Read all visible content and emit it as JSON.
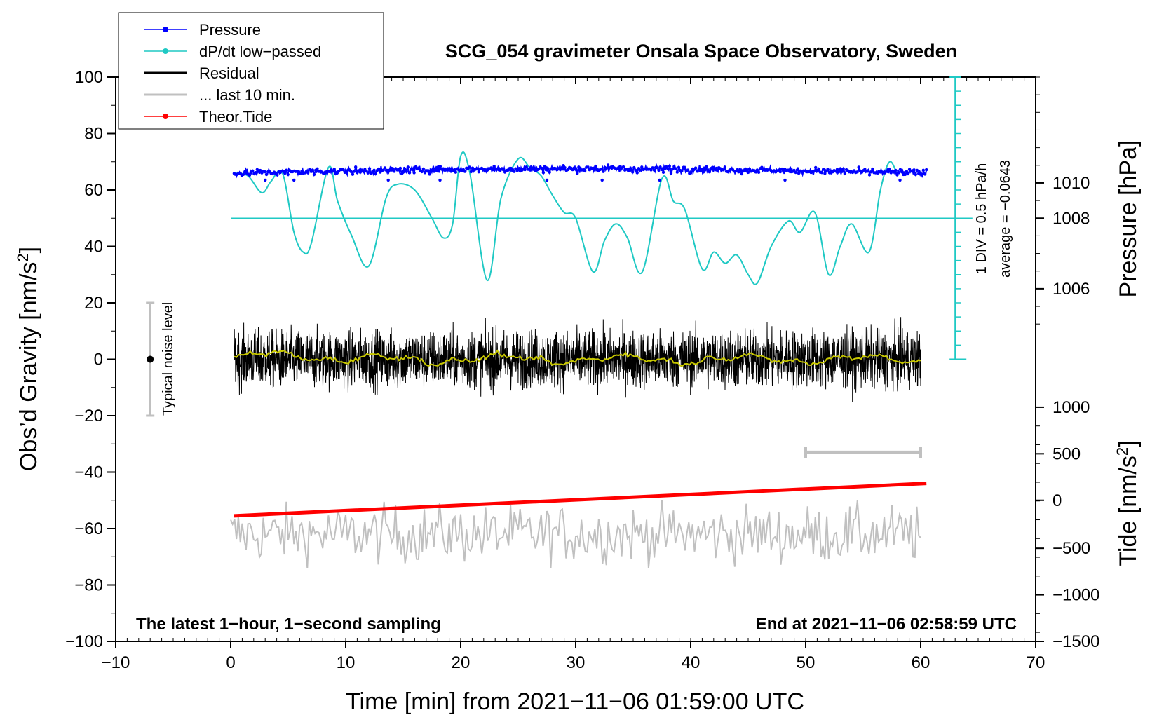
{
  "chart_data": {
    "type": "line",
    "title": "SCG_054 gravimeter Onsala Space Observatory, Sweden",
    "xlabel": "Time [min] from 2021−11−06 01:59:00 UTC",
    "ylabel_left": "Obs’d Gravity [nm/s",
    "ylabel_left_sup": "2",
    "ylabel_left_end": "]",
    "ylabel_right_top": "Pressure [hPa]",
    "ylabel_right_bottom": "Tide [nm/s",
    "ylabel_right_bottom_sup": "2",
    "ylabel_right_bottom_end": "]",
    "xlim": [
      -10,
      70
    ],
    "ylim_left": [
      -100,
      100
    ],
    "x_ticks": [
      -10,
      0,
      10,
      20,
      30,
      40,
      50,
      60,
      70
    ],
    "x_tick_labels": [
      "−10",
      "0",
      "10",
      "20",
      "30",
      "40",
      "50",
      "60",
      "70"
    ],
    "y_left_ticks": [
      100,
      80,
      60,
      40,
      20,
      0,
      -20,
      -40,
      -60,
      -80,
      -100
    ],
    "y_left_tick_labels": [
      "100",
      "80",
      "60",
      "40",
      "20",
      "0",
      "−20",
      "−40",
      "−60",
      "−80",
      "−100"
    ],
    "pressure_axis": {
      "ticks": [
        1010,
        1008,
        1006
      ],
      "tick_labels": [
        "1010",
        "1008",
        "1006"
      ],
      "gravity_equivalent": [
        62.5,
        50,
        25
      ]
    },
    "tide_axis": {
      "ticks": [
        1000,
        500,
        0,
        -500,
        -1000,
        -1500
      ],
      "tick_labels": [
        "1000",
        "500",
        "0",
        "−500",
        "−1000",
        "−1500"
      ],
      "gravity_equivalent": [
        -17,
        -33.5,
        -50,
        -67,
        -83.5,
        -100
      ]
    },
    "dpdt_scale": {
      "label_div": "1 DIV = 0.5 hPa/h",
      "label_avg": "average = −0.0643",
      "baseline_gravity": 50,
      "div_gravity": 5,
      "range_gravity": [
        0,
        100
      ]
    },
    "noise_bar": {
      "label": "Typical noise level",
      "x": -7,
      "center": 0,
      "low": -20,
      "high": 20
    },
    "last10_bar": {
      "x_start": 50,
      "x_end": 60,
      "y": -33
    },
    "legend": [
      {
        "label": "Pressure",
        "color": "#0000ff",
        "style": "line-dot"
      },
      {
        "label": "dP/dt low−passed",
        "color": "#1fc9c4",
        "style": "line-dot"
      },
      {
        "label": "Residual",
        "color": "#000000",
        "style": "line"
      },
      {
        "label": "... last 10 min.",
        "color": "#c0c0c0",
        "style": "line"
      },
      {
        "label": "Theor.Tide",
        "color": "#ff0000",
        "style": "line-dot"
      }
    ],
    "annotations": {
      "bottom_left": "The latest 1−hour, 1−second sampling",
      "bottom_right": "End at 2021−11−06 02:58:59 UTC"
    },
    "series": [
      {
        "name": "dP/dt low-passed",
        "color": "#1fc9c4",
        "x": [
          0.3,
          1.5,
          2.7,
          3.5,
          4.5,
          5.5,
          6.3,
          7.0,
          8.5,
          9.3,
          10.5,
          12.0,
          13.5,
          14.5,
          16.0,
          17.5,
          18.5,
          19.3,
          20.0,
          20.8,
          22.3,
          23.5,
          25.0,
          26.0,
          27.0,
          28.0,
          29.0,
          30.0,
          31.5,
          32.5,
          33.5,
          34.5,
          35.8,
          37.5,
          38.5,
          39.5,
          41.0,
          42.0,
          43.0,
          44.0,
          45.0,
          45.8,
          47.0,
          48.5,
          49.5,
          50.8,
          52.0,
          53.0,
          54.0,
          55.5,
          56.5,
          57.3,
          58.0
        ],
        "y": [
          66,
          65,
          59,
          63,
          66,
          45,
          38,
          41,
          68,
          56,
          44,
          33,
          57,
          62,
          60,
          50,
          43,
          48,
          72,
          66,
          28,
          57,
          71,
          68,
          65,
          58,
          52,
          50,
          31,
          42,
          48,
          43,
          31,
          64,
          56,
          53,
          32,
          38,
          34,
          37,
          30,
          27,
          40,
          49,
          45,
          52,
          30,
          40,
          48,
          38,
          60,
          70,
          65
        ]
      },
      {
        "name": "Theor.Tide",
        "color": "#ff0000",
        "x": [
          0.3,
          60.5
        ],
        "y": [
          -55.5,
          -44
        ]
      }
    ],
    "pressure_level": {
      "x_start": 0.3,
      "x_end": 60.5,
      "y_start": 66,
      "y_mid": 67.5,
      "y_end": 66,
      "noise": 0.6
    },
    "residual": {
      "x_start": 0.3,
      "x_end": 60,
      "center": 0,
      "amplitude": 5,
      "max_spike": 17,
      "smooth_color": "#c8c800"
    },
    "last10": {
      "x_start": 0,
      "x_end": 60,
      "center": -62,
      "amplitude": 5,
      "max_spike": 12
    }
  }
}
